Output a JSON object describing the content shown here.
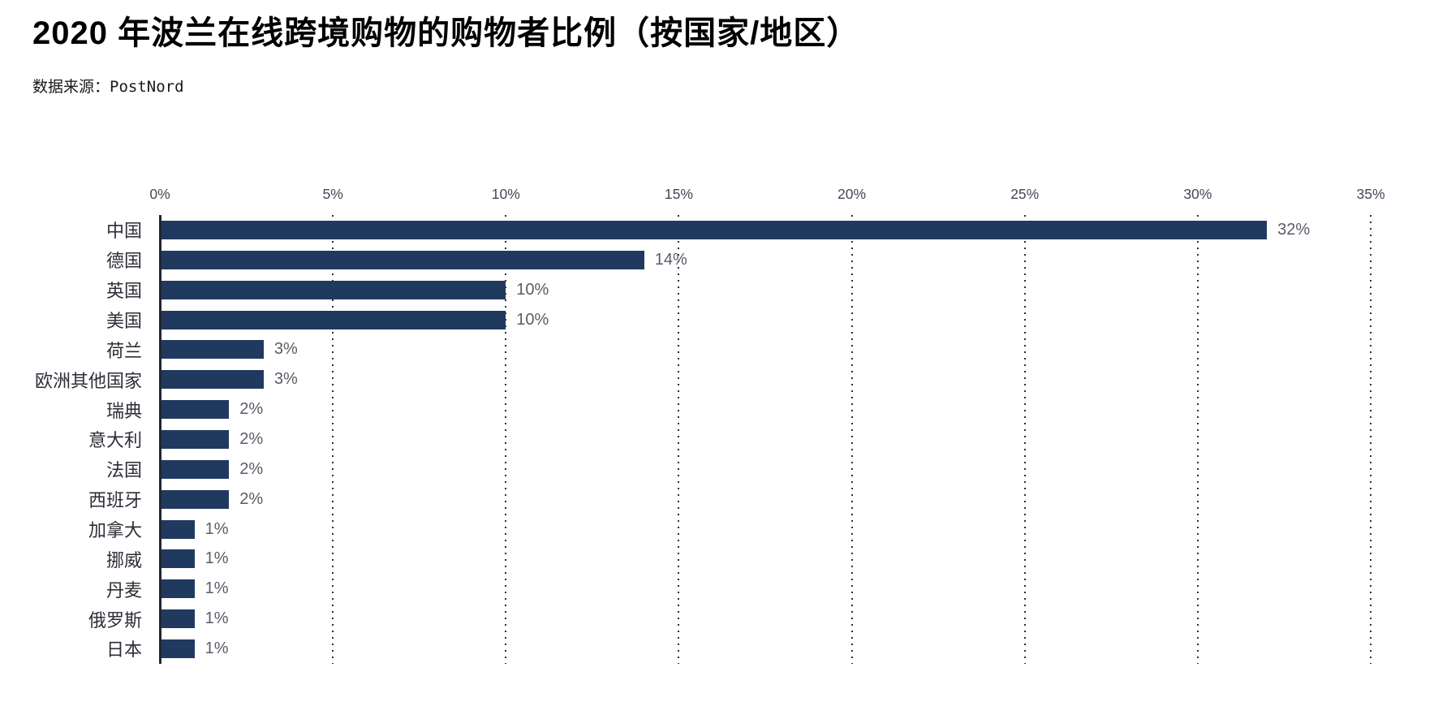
{
  "header": {
    "title": "2020 年波兰在线跨境购物的购物者比例（按国家/地区）",
    "source_prefix": "数据来源：",
    "source_name": "PostNord"
  },
  "chart_data": {
    "type": "bar",
    "orientation": "horizontal",
    "title": "2020 年波兰在线跨境购物的购物者比例（按国家/地区）",
    "source": "数据来源：PostNord",
    "categories": [
      "中国",
      "德国",
      "英国",
      "美国",
      "荷兰",
      "欧洲其他国家",
      "瑞典",
      "意大利",
      "法国",
      "西班牙",
      "加拿大",
      "挪威",
      "丹麦",
      "俄罗斯",
      "日本"
    ],
    "values": [
      32,
      14,
      10,
      10,
      3,
      3,
      2,
      2,
      2,
      2,
      1,
      1,
      1,
      1,
      1
    ],
    "value_labels": [
      "32%",
      "14%",
      "10%",
      "10%",
      "3%",
      "3%",
      "2%",
      "2%",
      "2%",
      "2%",
      "1%",
      "1%",
      "1%",
      "1%",
      "1%"
    ],
    "xlabel": "",
    "ylabel": "",
    "xlim": [
      0,
      35
    ],
    "x_ticks": [
      {
        "value": 0,
        "label": "0%"
      },
      {
        "value": 5,
        "label": "5%"
      },
      {
        "value": 10,
        "label": "10%"
      },
      {
        "value": 15,
        "label": "15%"
      },
      {
        "value": 20,
        "label": "20%"
      },
      {
        "value": 25,
        "label": "25%"
      },
      {
        "value": 30,
        "label": "30%"
      },
      {
        "value": 35,
        "label": "35%"
      }
    ],
    "grid": "vertical-dotted",
    "legend_position": "none",
    "bar_color": "#1f3a5e",
    "gridline_color": "#2a303a",
    "axis_color": "#22262e",
    "tick_label_color": "#414855",
    "value_label_color": "#585d66",
    "category_label_color": "#2b2f36"
  }
}
